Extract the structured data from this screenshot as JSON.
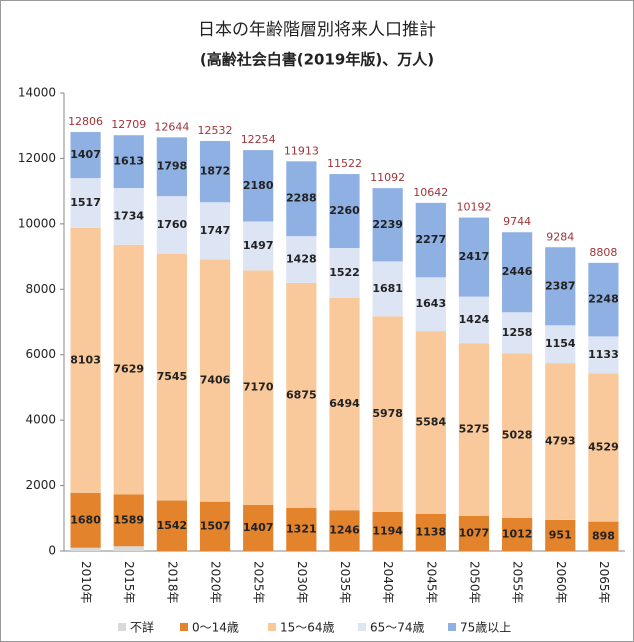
{
  "chart_data": {
    "type": "stacked_bar",
    "title": "日本の年齢階層別将来人口推計",
    "subtitle": "(高齢社会白書(2019年版)、万人)",
    "categories": [
      "2010年",
      "2015年",
      "2018年",
      "2020年",
      "2025年",
      "2030年",
      "2035年",
      "2040年",
      "2045年",
      "2050年",
      "2055年",
      "2060年",
      "2065年"
    ],
    "series": [
      {
        "name": "不詳",
        "color": "#d9d9d9",
        "values": [
          99,
          144,
          0,
          0,
          0,
          0,
          0,
          0,
          0,
          0,
          0,
          0,
          0
        ]
      },
      {
        "name": "0～14歳",
        "color": "#e3832c",
        "values": [
          1680,
          1589,
          1542,
          1507,
          1407,
          1321,
          1246,
          1194,
          1138,
          1077,
          1012,
          951,
          898
        ]
      },
      {
        "name": "15～64歳",
        "color": "#f9c99b",
        "values": [
          8103,
          7629,
          7545,
          7406,
          7170,
          6875,
          6494,
          5978,
          5584,
          5275,
          5028,
          4793,
          4529
        ]
      },
      {
        "name": "65～74歳",
        "color": "#dde4f3",
        "values": [
          1517,
          1734,
          1760,
          1747,
          1497,
          1428,
          1522,
          1681,
          1643,
          1424,
          1258,
          1154,
          1133
        ]
      },
      {
        "name": "75歳以上",
        "color": "#8fb0e2",
        "values": [
          1407,
          1613,
          1798,
          1872,
          2180,
          2288,
          2260,
          2239,
          2277,
          2417,
          2446,
          2387,
          2248
        ]
      }
    ],
    "totals": [
      12806,
      12709,
      12644,
      12532,
      12254,
      11913,
      11522,
      11092,
      10642,
      10192,
      9744,
      9284,
      8808
    ],
    "labeled_series": [
      1,
      2,
      3,
      4
    ],
    "ylim": [
      0,
      14000
    ],
    "yticks": [
      0,
      2000,
      4000,
      6000,
      8000,
      10000,
      12000,
      14000
    ],
    "grid": false,
    "legend": "bottom"
  }
}
